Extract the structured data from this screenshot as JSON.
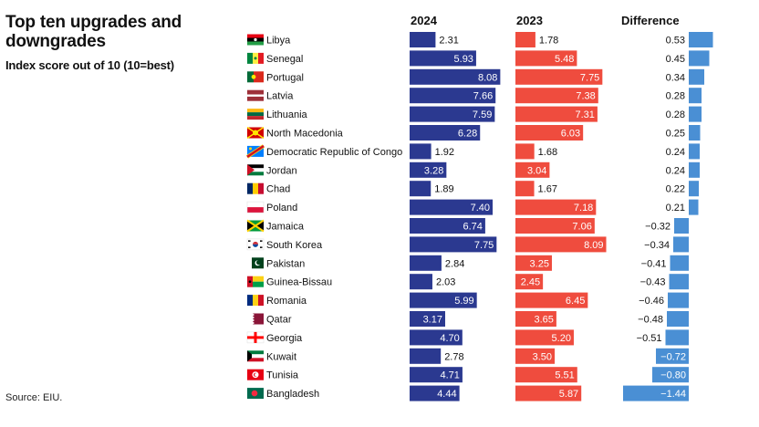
{
  "chart_data": {
    "type": "bar",
    "title": "Top ten upgrades and downgrades",
    "subtitle": "Index score out of 10 (10=best)",
    "source": "Source: EIU.",
    "columns": [
      "2024",
      "2023",
      "Difference"
    ],
    "colors": {
      "y2024": "#2b3990",
      "y2023": "#ef4c3e",
      "diff": "#4a8fd4"
    },
    "rows": [
      {
        "country": "Libya",
        "v2024": 2.31,
        "v2023": 1.78,
        "diff": "0.53",
        "diff_value": 0.53,
        "flag": "libya-flag"
      },
      {
        "country": "Senegal",
        "v2024": 5.93,
        "v2023": 5.48,
        "diff": "0.45",
        "diff_value": 0.45,
        "flag": "senegal-flag"
      },
      {
        "country": "Portugal",
        "v2024": 8.08,
        "v2023": 7.75,
        "diff": "0.34",
        "diff_value": 0.34,
        "flag": "portugal-flag"
      },
      {
        "country": "Latvia",
        "v2024": 7.66,
        "v2023": 7.38,
        "diff": "0.28",
        "diff_value": 0.28,
        "flag": "latvia-flag"
      },
      {
        "country": "Lithuania",
        "v2024": 7.59,
        "v2023": 7.31,
        "diff": "0.28",
        "diff_value": 0.28,
        "flag": "lithuania-flag"
      },
      {
        "country": "North Macedonia",
        "v2024": 6.28,
        "v2023": 6.03,
        "diff": "0.25",
        "diff_value": 0.25,
        "flag": "north-macedonia-flag"
      },
      {
        "country": "Democratic Republic of Congo",
        "v2024": 1.92,
        "v2023": 1.68,
        "diff": "0.24",
        "diff_value": 0.24,
        "flag": "dr-congo-flag"
      },
      {
        "country": "Jordan",
        "v2024": 3.28,
        "v2023": 3.04,
        "diff": "0.24",
        "diff_value": 0.24,
        "flag": "jordan-flag"
      },
      {
        "country": "Chad",
        "v2024": 1.89,
        "v2023": 1.67,
        "diff": "0.22",
        "diff_value": 0.22,
        "flag": "chad-flag"
      },
      {
        "country": "Poland",
        "v2024": 7.4,
        "v2023": 7.18,
        "diff": "0.21",
        "diff_value": 0.21,
        "flag": "poland-flag"
      },
      {
        "country": "Jamaica",
        "v2024": 6.74,
        "v2023": 7.06,
        "diff": "−0.32",
        "diff_value": -0.32,
        "flag": "jamaica-flag"
      },
      {
        "country": "South Korea",
        "v2024": 7.75,
        "v2023": 8.09,
        "diff": "−0.34",
        "diff_value": -0.34,
        "flag": "south-korea-flag"
      },
      {
        "country": "Pakistan",
        "v2024": 2.84,
        "v2023": 3.25,
        "diff": "−0.41",
        "diff_value": -0.41,
        "flag": "pakistan-flag"
      },
      {
        "country": "Guinea-Bissau",
        "v2024": 2.03,
        "v2023": 2.45,
        "diff": "−0.43",
        "diff_value": -0.43,
        "flag": "guinea-bissau-flag"
      },
      {
        "country": "Romania",
        "v2024": 5.99,
        "v2023": 6.45,
        "diff": "−0.46",
        "diff_value": -0.46,
        "flag": "romania-flag"
      },
      {
        "country": "Qatar",
        "v2024": 3.17,
        "v2023": 3.65,
        "diff": "−0.48",
        "diff_value": -0.48,
        "flag": "qatar-flag"
      },
      {
        "country": "Georgia",
        "v2024": 4.7,
        "v2023": 5.2,
        "diff": "−0.51",
        "diff_value": -0.51,
        "flag": "georgia-flag"
      },
      {
        "country": "Kuwait",
        "v2024": 2.78,
        "v2023": 3.5,
        "diff": "−0.72",
        "diff_value": -0.72,
        "flag": "kuwait-flag"
      },
      {
        "country": "Tunisia",
        "v2024": 4.71,
        "v2023": 5.51,
        "diff": "−0.80",
        "diff_value": -0.8,
        "flag": "tunisia-flag"
      },
      {
        "country": "Bangladesh",
        "v2024": 4.44,
        "v2023": 5.87,
        "diff": "−1.44",
        "diff_value": -1.44,
        "flag": "bangladesh-flag"
      }
    ],
    "values_format": "2 decimals",
    "grid": false,
    "legend": "column headers"
  }
}
